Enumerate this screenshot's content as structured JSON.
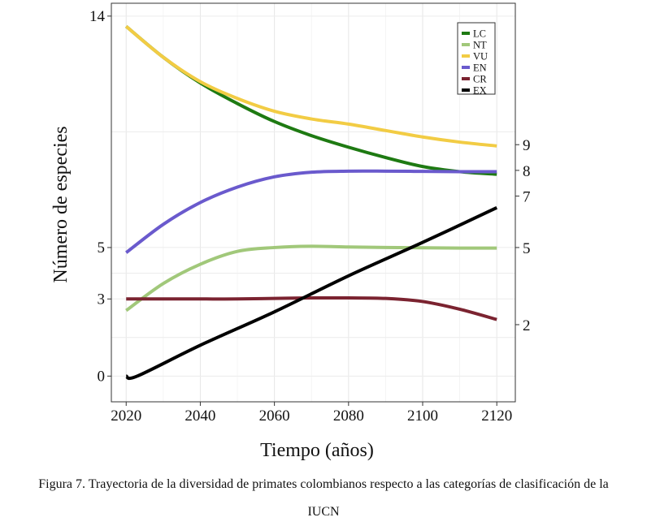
{
  "chart_data": {
    "type": "line",
    "xlabel": "Tiempo (años)",
    "ylabel": "Número de especies",
    "xlim": [
      2016,
      2125
    ],
    "ylim": [
      -1,
      14.5
    ],
    "x_ticks": [
      2020,
      2040,
      2060,
      2080,
      2100,
      2120
    ],
    "y_ticks_left": [
      0,
      3,
      5,
      14
    ],
    "y_ticks_right": [
      {
        "value": 9.0,
        "label": "9"
      },
      {
        "value": 8.0,
        "label": "8"
      },
      {
        "value": 7.0,
        "label": "7"
      },
      {
        "value": 5.0,
        "label": "5"
      },
      {
        "value": 2.0,
        "label": "2"
      }
    ],
    "grid": true,
    "legend_position": "top-right",
    "series": [
      {
        "name": "LC",
        "color": "#1e7a12",
        "x": [
          2020,
          2030,
          2040,
          2050,
          2060,
          2070,
          2080,
          2090,
          2100,
          2110,
          2120
        ],
        "y": [
          13.6,
          12.4,
          11.4,
          10.6,
          9.9,
          9.35,
          8.9,
          8.5,
          8.15,
          7.95,
          7.85
        ]
      },
      {
        "name": "NT",
        "color": "#a1c87a",
        "x": [
          2020,
          2030,
          2040,
          2050,
          2060,
          2070,
          2080,
          2090,
          2100,
          2110,
          2120
        ],
        "y": [
          2.55,
          3.6,
          4.35,
          4.85,
          5.0,
          5.05,
          5.02,
          5.0,
          4.99,
          4.98,
          4.98
        ]
      },
      {
        "name": "VU",
        "color": "#f2cc44",
        "x": [
          2020,
          2030,
          2040,
          2050,
          2060,
          2070,
          2080,
          2090,
          2100,
          2110,
          2120
        ],
        "y": [
          13.6,
          12.4,
          11.45,
          10.8,
          10.3,
          10.0,
          9.8,
          9.55,
          9.3,
          9.1,
          8.95
        ]
      },
      {
        "name": "EN",
        "color": "#6a5acd",
        "x": [
          2020,
          2030,
          2040,
          2050,
          2060,
          2070,
          2080,
          2090,
          2100,
          2110,
          2120
        ],
        "y": [
          4.8,
          5.9,
          6.75,
          7.35,
          7.75,
          7.93,
          7.97,
          7.97,
          7.96,
          7.95,
          7.95
        ]
      },
      {
        "name": "CR",
        "color": "#7b2330",
        "x": [
          2020,
          2030,
          2040,
          2050,
          2060,
          2070,
          2080,
          2090,
          2100,
          2110,
          2120
        ],
        "y": [
          3.0,
          3.0,
          3.0,
          3.0,
          3.02,
          3.04,
          3.04,
          3.02,
          2.9,
          2.6,
          2.2
        ]
      },
      {
        "name": "EX",
        "color": "#000000",
        "x": [
          2020,
          2023,
          2040,
          2060,
          2080,
          2100,
          2120
        ],
        "y": [
          0.0,
          0.0,
          1.2,
          2.5,
          3.9,
          5.2,
          6.55
        ]
      }
    ]
  },
  "caption": {
    "line1": "Figura 7. Trayectoria de la diversidad de primates colombianos respecto a las categorías de clasificación de la",
    "line2": "IUCN"
  }
}
